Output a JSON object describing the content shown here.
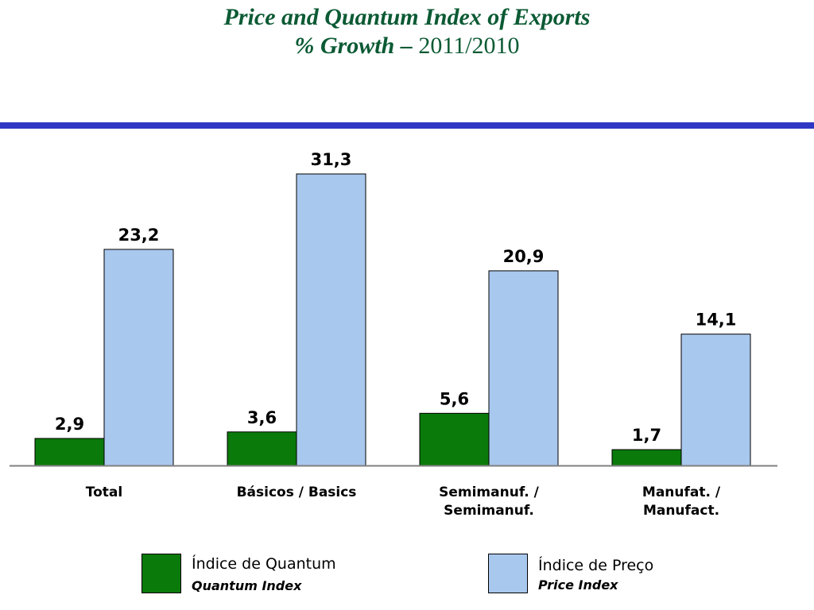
{
  "title": {
    "line1": "Price and Quantum Index of Exports",
    "line2_bold": "% Growth –",
    "line2_normal": "2011/2010"
  },
  "colors": {
    "rule": "#2e36c4",
    "title": "#0b5a34",
    "quantum": "#0a7a0a",
    "price": "#a9c8ee"
  },
  "legend": {
    "quantum": {
      "label": "Índice de Quantum",
      "sublabel": "Quantum Index"
    },
    "price": {
      "label": "Índice de Preço",
      "sublabel": "Price Index"
    }
  },
  "chart_data": {
    "type": "bar",
    "categories": [
      [
        "Total"
      ],
      [
        "Básicos / Basics"
      ],
      [
        "Semimanuf. /",
        "Semimanuf."
      ],
      [
        "Manufat. /",
        "Manufact."
      ]
    ],
    "series": [
      {
        "name": "Índice de Quantum",
        "values": [
          2.9,
          3.6,
          5.6,
          1.7
        ],
        "labels": [
          "2,9",
          "3,6",
          "5,6",
          "1,7"
        ]
      },
      {
        "name": "Índice de Preço",
        "values": [
          23.2,
          31.3,
          20.9,
          14.1
        ],
        "labels": [
          "23,2",
          "31,3",
          "20,9",
          "14,1"
        ]
      }
    ],
    "ylim": [
      0,
      31.3
    ],
    "grid": false,
    "legend_position": "bottom"
  }
}
